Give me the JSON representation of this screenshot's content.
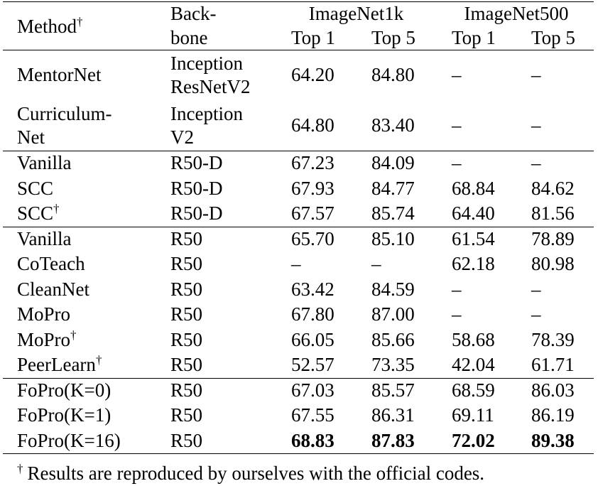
{
  "header": {
    "method": {
      "text": "Method",
      "sup": "†"
    },
    "backbone": [
      "Back-",
      "bone"
    ],
    "groups": [
      {
        "name": "ImageNet1k",
        "cols": [
          "Top 1",
          "Top 5"
        ]
      },
      {
        "name": "ImageNet500",
        "cols": [
          "Top 1",
          "Top 5"
        ]
      }
    ]
  },
  "table": {
    "groups": [
      [
        {
          "method": [
            "MentorNet"
          ],
          "backbone": [
            "Inception",
            "ResNetV2"
          ],
          "values": [
            "64.20",
            "84.80",
            "–",
            "–"
          ]
        },
        {
          "method": [
            "Curriculum-",
            "Net"
          ],
          "backbone": [
            "Inception",
            "V2"
          ],
          "values": [
            "64.80",
            "83.40",
            "–",
            "–"
          ]
        }
      ],
      [
        {
          "method": [
            "Vanilla"
          ],
          "backbone": [
            "R50-D"
          ],
          "values": [
            "67.23",
            "84.09",
            "–",
            "–"
          ]
        },
        {
          "method": [
            "SCC"
          ],
          "backbone": [
            "R50-D"
          ],
          "values": [
            "67.93",
            "84.77",
            "68.84",
            "84.62"
          ]
        },
        {
          "method": [
            "SCC"
          ],
          "sup": "†",
          "backbone": [
            "R50-D"
          ],
          "values": [
            "67.57",
            "85.74",
            "64.40",
            "81.56"
          ]
        }
      ],
      [
        {
          "method": [
            "Vanilla"
          ],
          "backbone": [
            "R50"
          ],
          "values": [
            "65.70",
            "85.10",
            "61.54",
            "78.89"
          ]
        },
        {
          "method": [
            "CoTeach"
          ],
          "backbone": [
            "R50"
          ],
          "values": [
            "–",
            "–",
            "62.18",
            "80.98"
          ]
        },
        {
          "method": [
            "CleanNet"
          ],
          "backbone": [
            "R50"
          ],
          "values": [
            "63.42",
            "84.59",
            "–",
            "–"
          ]
        },
        {
          "method": [
            "MoPro"
          ],
          "backbone": [
            "R50"
          ],
          "values": [
            "67.80",
            "87.00",
            "–",
            "–"
          ]
        },
        {
          "method": [
            "MoPro"
          ],
          "sup": "†",
          "backbone": [
            "R50"
          ],
          "values": [
            "66.05",
            "85.66",
            "58.68",
            "78.39"
          ]
        },
        {
          "method": [
            "PeerLearn"
          ],
          "sup": "†",
          "backbone": [
            "R50"
          ],
          "values": [
            "52.57",
            "73.35",
            "42.04",
            "61.71"
          ]
        }
      ],
      [
        {
          "method": [
            "FoPro(K=0)"
          ],
          "backbone": [
            "R50"
          ],
          "values": [
            "67.03",
            "85.57",
            "68.59",
            "86.03"
          ]
        },
        {
          "method": [
            "FoPro(K=1)"
          ],
          "backbone": [
            "R50"
          ],
          "values": [
            "67.55",
            "86.31",
            "69.11",
            "86.19"
          ]
        },
        {
          "method": [
            "FoPro(K=16)"
          ],
          "backbone": [
            "R50"
          ],
          "values": [
            "68.83",
            "87.83",
            "72.02",
            "89.38"
          ],
          "bold": true
        }
      ]
    ]
  },
  "footnote": {
    "sup": "†",
    "text": "Results are reproduced by ourselves with the official codes."
  }
}
